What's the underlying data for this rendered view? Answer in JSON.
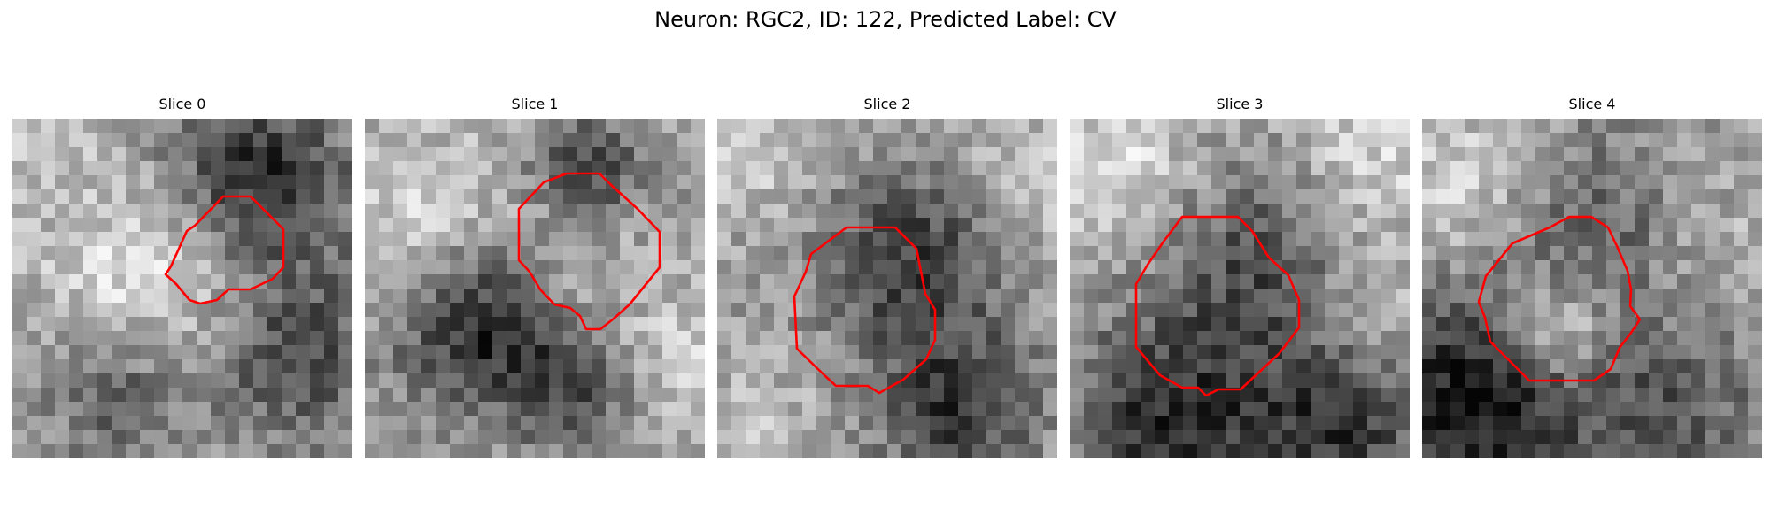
{
  "figure": {
    "title": "Neuron: RGC2, ID: 122, Predicted Label: CV"
  },
  "panels": [
    {
      "title": "Slice 0",
      "roi_color": "#ff0000"
    },
    {
      "title": "Slice 1",
      "roi_color": "#ff0000"
    },
    {
      "title": "Slice 2",
      "roi_color": "#ff0000"
    },
    {
      "title": "Slice 3",
      "roi_color": "#ff0000"
    },
    {
      "title": "Slice 4",
      "roi_color": "#ff0000"
    }
  ]
}
